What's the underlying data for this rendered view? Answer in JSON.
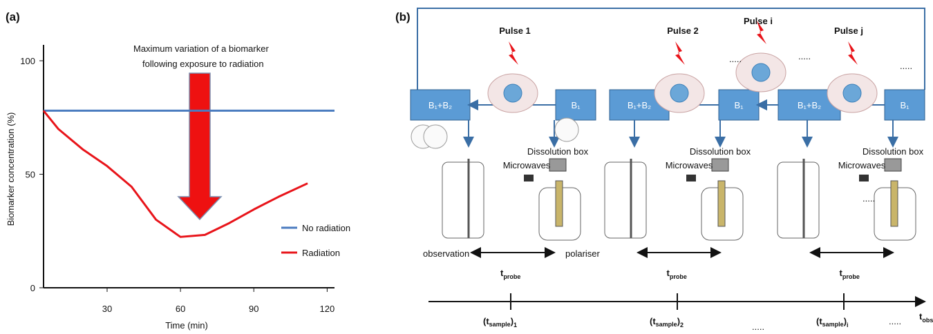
{
  "chart_data": {
    "type": "line",
    "panel_label": "(a)",
    "x_label": "Time (min)",
    "y_label": "Biomarker concentration (%)",
    "annotation": [
      "Maximum variation of a biomarker",
      "following exposure to radiation"
    ],
    "x": [
      4,
      10,
      20,
      30,
      40,
      50,
      60,
      70,
      80,
      90,
      100,
      112,
      123
    ],
    "series": [
      {
        "name": "No radiation",
        "color": "#4a7bbf",
        "values": [
          78,
          78,
          78,
          78,
          78,
          78,
          78,
          78,
          78,
          78,
          78,
          78,
          78
        ]
      },
      {
        "name": "Radiation",
        "color": "#e8141a",
        "values": [
          78,
          70,
          61,
          53.6,
          44.5,
          30,
          22.4,
          23.3,
          28.5,
          34.5,
          40,
          46,
          null
        ]
      }
    ],
    "xlim": [
      4,
      123
    ],
    "ylim": [
      0,
      107
    ],
    "xticks": [
      30,
      60,
      90,
      120
    ],
    "yticks": [
      0,
      50,
      100
    ],
    "grid": false,
    "legend": "right"
  },
  "diagram": {
    "label": "(b)",
    "pulses": [
      "Pulse 1",
      "Pulse 2",
      "Pulse i",
      "Pulse j"
    ],
    "boxes": [
      "B₁+B₂",
      "B₁",
      "B₁+B₂",
      "B₁",
      "B₁+B₂",
      "B₁"
    ],
    "observation": "observation",
    "polariser": "polariser",
    "dissolution": [
      "Dissolution box",
      "Dissolution box",
      "Dissolution box"
    ],
    "microwaves": [
      "Microwaves",
      "Microwaves",
      "Microwaves"
    ],
    "t_probe": [
      {
        "t": "t",
        "sub": "probe"
      },
      {
        "t": "t",
        "sub": "probe"
      },
      {
        "t": "t",
        "sub": "probe"
      }
    ],
    "samples": [
      {
        "open": "(t",
        "sub": "sample",
        "close": ")",
        "index": "1"
      },
      {
        "open": "(t",
        "sub": "sample",
        "close": ")",
        "index": "2"
      },
      {
        "open": "(t",
        "sub": "sample",
        "close": ")",
        "index": "i"
      }
    ],
    "t_obs": {
      "t": "t",
      "sub": "obs"
    },
    "ellipses": [
      ".....",
      ".....",
      ".....",
      ".....",
      ".....",
      "....."
    ]
  }
}
